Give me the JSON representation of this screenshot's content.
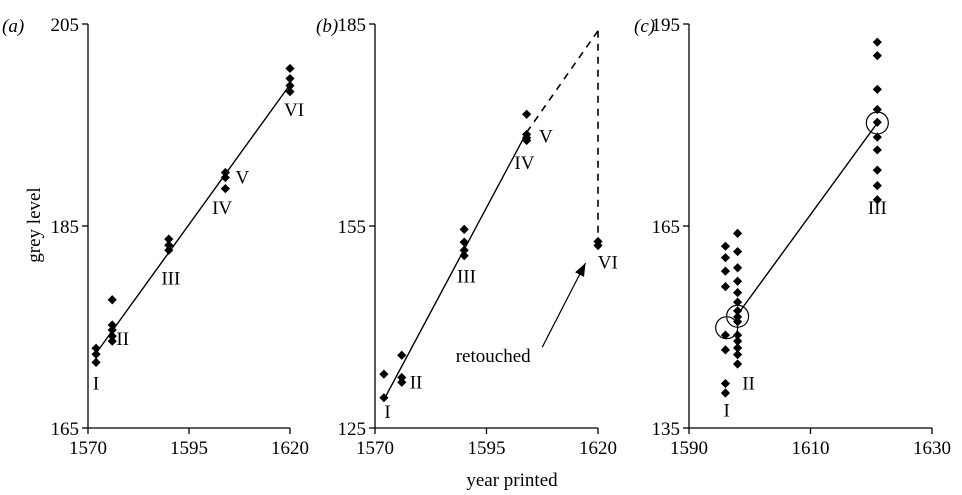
{
  "figure": {
    "ylabel": "grey level",
    "xlabel": "year printed"
  },
  "chart_data": [
    {
      "type": "scatter",
      "panel_label": "(a)",
      "xlim": [
        1570,
        1620
      ],
      "ylim": [
        165,
        205
      ],
      "xticks": [
        1570,
        1595,
        1620
      ],
      "yticks": [
        165,
        185,
        205
      ],
      "x_tick_labels": [
        "1570",
        "1595",
        "1620"
      ],
      "y_tick_labels": [
        "165",
        "185",
        "205"
      ],
      "points": [
        [
          1572,
          172.9
        ],
        [
          1572,
          172.3
        ],
        [
          1572,
          171.5
        ],
        [
          1576,
          175.2
        ],
        [
          1576,
          174.7
        ],
        [
          1576,
          174.1
        ],
        [
          1576,
          173.6
        ],
        [
          1576,
          177.7
        ],
        [
          1590,
          183.7
        ],
        [
          1590,
          183.1
        ],
        [
          1590,
          182.6
        ],
        [
          1604,
          190.3
        ],
        [
          1604,
          189.8
        ],
        [
          1604,
          188.7
        ],
        [
          1620,
          200.6
        ],
        [
          1620,
          199.6
        ],
        [
          1620,
          198.9
        ],
        [
          1620,
          198.3
        ]
      ],
      "fit_line": [
        [
          1572,
          172.4
        ],
        [
          1620,
          199.0
        ]
      ],
      "dashed_lines": [],
      "circles": [],
      "labels": [
        {
          "text": "I",
          "x": 1572,
          "y": 168.8
        },
        {
          "text": "II",
          "x": 1578.6,
          "y": 173.2
        },
        {
          "text": "III",
          "x": 1590.5,
          "y": 179.2
        },
        {
          "text": "IV",
          "x": 1603.2,
          "y": 186.2
        },
        {
          "text": "V",
          "x": 1608.2,
          "y": 189.2
        },
        {
          "text": "VI",
          "x": 1621,
          "y": 195.9
        }
      ]
    },
    {
      "type": "scatter",
      "panel_label": "(b)",
      "xlim": [
        1570,
        1620
      ],
      "ylim": [
        125,
        185
      ],
      "xticks": [
        1570,
        1595,
        1620
      ],
      "yticks": [
        125,
        155,
        185
      ],
      "x_tick_labels": [
        "1570",
        "1595",
        "1620"
      ],
      "y_tick_labels": [
        "125",
        "155",
        "185"
      ],
      "points": [
        [
          1572,
          129.5
        ],
        [
          1572,
          133.0
        ],
        [
          1576,
          132.5
        ],
        [
          1576,
          131.8
        ],
        [
          1576,
          135.8
        ],
        [
          1590,
          154.5
        ],
        [
          1590,
          152.6
        ],
        [
          1590,
          151.4
        ],
        [
          1590,
          150.6
        ],
        [
          1604,
          171.6
        ],
        [
          1604,
          168.6
        ],
        [
          1604,
          168.1
        ],
        [
          1604,
          167.7
        ],
        [
          1620,
          152.7
        ],
        [
          1620,
          152.1
        ]
      ],
      "fit_line": [
        [
          1572,
          129.2
        ],
        [
          1604,
          168.9
        ]
      ],
      "dashed_lines": [
        [
          [
            1604,
            168.9
          ],
          [
            1620,
            184.0
          ]
        ],
        [
          [
            1620,
            184.0
          ],
          [
            1620,
            153.8
          ]
        ]
      ],
      "circles": [],
      "labels": [
        {
          "text": "I",
          "x": 1572.8,
          "y": 126.5
        },
        {
          "text": "II",
          "x": 1579.2,
          "y": 130.9
        },
        {
          "text": "III",
          "x": 1590.5,
          "y": 146.6
        },
        {
          "text": "IV",
          "x": 1603.5,
          "y": 163.5
        },
        {
          "text": "V",
          "x": 1608.3,
          "y": 167.4
        },
        {
          "text": "VI",
          "x": 1622.2,
          "y": 148.7
        },
        {
          "text": "retouched",
          "x": 1596.5,
          "y": 134.8
        }
      ],
      "annotation_arrow": {
        "from": [
          1607.5,
          137.0
        ],
        "to": [
          1617.2,
          149.5
        ]
      }
    },
    {
      "type": "scatter",
      "panel_label": "(c)",
      "xlim": [
        1590,
        1630
      ],
      "ylim": [
        135,
        195
      ],
      "xticks": [
        1590,
        1610,
        1630
      ],
      "yticks": [
        135,
        165,
        195
      ],
      "x_tick_labels": [
        "1590",
        "1610",
        "1630"
      ],
      "y_tick_labels": [
        "135",
        "165",
        "195"
      ],
      "points": [
        [
          1596,
          162.0
        ],
        [
          1596,
          160.3
        ],
        [
          1596,
          158.3
        ],
        [
          1596,
          156.0
        ],
        [
          1596,
          148.8
        ],
        [
          1596,
          146.6
        ],
        [
          1596,
          141.6
        ],
        [
          1596,
          140.2
        ],
        [
          1598,
          163.9
        ],
        [
          1598,
          161.2
        ],
        [
          1598,
          158.8
        ],
        [
          1598,
          156.8
        ],
        [
          1598,
          155.1
        ],
        [
          1598,
          153.7
        ],
        [
          1598,
          152.4
        ],
        [
          1598,
          151.5
        ],
        [
          1598,
          150.8
        ],
        [
          1598,
          148.8
        ],
        [
          1598,
          147.9
        ],
        [
          1598,
          146.9
        ],
        [
          1598,
          145.9
        ],
        [
          1598,
          144.5
        ],
        [
          1621,
          192.3
        ],
        [
          1621,
          190.3
        ],
        [
          1621,
          185.3
        ],
        [
          1621,
          182.3
        ],
        [
          1621,
          180.4
        ],
        [
          1621,
          178.2
        ],
        [
          1621,
          176.3
        ],
        [
          1621,
          173.3
        ],
        [
          1621,
          171.0
        ],
        [
          1621,
          168.9
        ]
      ],
      "fit_line": [
        [
          1597.8,
          151.6
        ],
        [
          1621,
          180.3
        ]
      ],
      "dashed_lines": [],
      "circles": [
        [
          1596.2,
          149.9
        ],
        [
          1598,
          151.6
        ],
        [
          1621,
          180.3
        ]
      ],
      "labels": [
        {
          "text": "I",
          "x": 1596.2,
          "y": 136.7
        },
        {
          "text": "II",
          "x": 1599.8,
          "y": 140.7
        },
        {
          "text": "III",
          "x": 1621,
          "y": 166.8
        }
      ]
    }
  ]
}
